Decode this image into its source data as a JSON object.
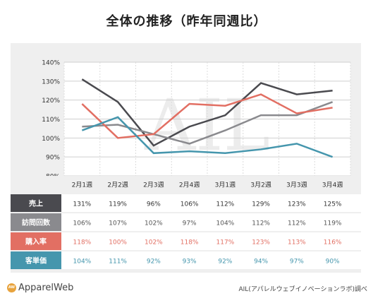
{
  "title": "全体の推移（昨年同週比）",
  "chart_data": {
    "type": "line",
    "categories": [
      "2月1週",
      "2月2週",
      "2月3週",
      "2月4週",
      "3月1週",
      "3月2週",
      "3月3週",
      "3月4週"
    ],
    "ylim": [
      80,
      140
    ],
    "yticks": [
      80,
      90,
      100,
      110,
      120,
      130,
      140
    ],
    "ytick_labels": [
      "80%",
      "90%",
      "100%",
      "110%",
      "120%",
      "130%",
      "140%"
    ],
    "grid": true,
    "series": [
      {
        "name": "売上",
        "color": "#4a4a4f",
        "values": [
          131,
          119,
          96,
          106,
          112,
          129,
          123,
          125
        ],
        "labels": [
          "131%",
          "119%",
          "96%",
          "106%",
          "112%",
          "129%",
          "123%",
          "125%"
        ]
      },
      {
        "name": "訪問回数",
        "color": "#8a8a8e",
        "values": [
          106,
          107,
          102,
          97,
          104,
          112,
          112,
          119
        ],
        "labels": [
          "106%",
          "107%",
          "102%",
          "97%",
          "104%",
          "112%",
          "112%",
          "119%"
        ]
      },
      {
        "name": "購入率",
        "color": "#e26f63",
        "values": [
          118,
          100,
          102,
          118,
          117,
          123,
          113,
          116
        ],
        "labels": [
          "118%",
          "100%",
          "102%",
          "118%",
          "117%",
          "123%",
          "113%",
          "116%"
        ]
      },
      {
        "name": "客単価",
        "color": "#4596ad",
        "values": [
          104,
          111,
          92,
          93,
          92,
          94,
          97,
          90
        ],
        "labels": [
          "104%",
          "111%",
          "92%",
          "93%",
          "92%",
          "94%",
          "97%",
          "90%"
        ]
      }
    ]
  },
  "watermark": "AIL",
  "footer": {
    "logo_badge": "AW",
    "logo_text": "ApparelWeb",
    "credit": "AIL(アパレルウェブイノベーションラボ)調べ"
  }
}
